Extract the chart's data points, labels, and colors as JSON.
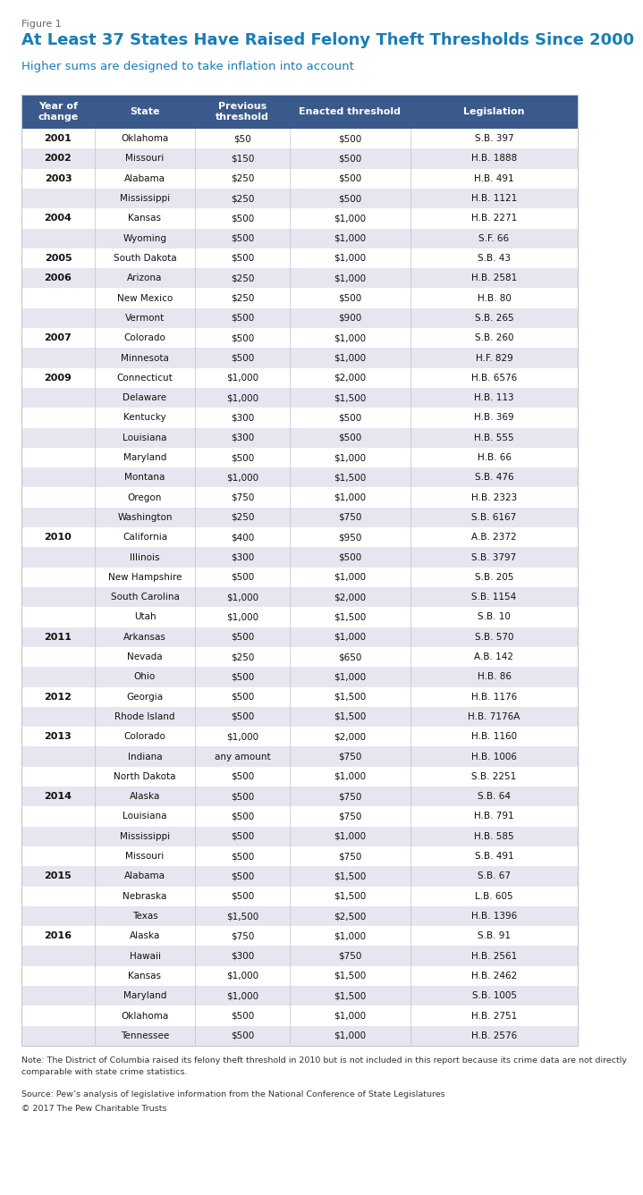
{
  "figure_label": "Figure 1",
  "title": "At Least 37 States Have Raised Felony Theft Thresholds Since 2000",
  "subtitle": "Higher sums are designed to take inflation into account",
  "header_bg": "#3a5a8c",
  "header_text_color": "#ffffff",
  "title_color": "#1a7db5",
  "subtitle_color": "#1a7db5",
  "figure_label_color": "#666666",
  "row_colors": [
    "#ffffff",
    "#e6e6f0"
  ],
  "headers": [
    "Year of\nchange",
    "State",
    "Previous\nthreshold",
    "Enacted threshold",
    "Legislation"
  ],
  "note": "Note: The District of Columbia raised its felony theft threshold in 2010 but is not included in this report because its crime data are not directly\ncomparable with state crime statistics.",
  "source": "Source: Pew’s analysis of legislative information from the National Conference of State Legislatures",
  "copyright": "© 2017 The Pew Charitable Trusts",
  "rows": [
    [
      "2001",
      "Oklahoma",
      "$50",
      "$500",
      "S.B. 397"
    ],
    [
      "2002",
      "Missouri",
      "$150",
      "$500",
      "H.B. 1888"
    ],
    [
      "2003",
      "Alabama",
      "$250",
      "$500",
      "H.B. 491"
    ],
    [
      "",
      "Mississippi",
      "$250",
      "$500",
      "H.B. 1121"
    ],
    [
      "2004",
      "Kansas",
      "$500",
      "$1,000",
      "H.B. 2271"
    ],
    [
      "",
      "Wyoming",
      "$500",
      "$1,000",
      "S.F. 66"
    ],
    [
      "2005",
      "South Dakota",
      "$500",
      "$1,000",
      "S.B. 43"
    ],
    [
      "2006",
      "Arizona",
      "$250",
      "$1,000",
      "H.B. 2581"
    ],
    [
      "",
      "New Mexico",
      "$250",
      "$500",
      "H.B. 80"
    ],
    [
      "",
      "Vermont",
      "$500",
      "$900",
      "S.B. 265"
    ],
    [
      "2007",
      "Colorado",
      "$500",
      "$1,000",
      "S.B. 260"
    ],
    [
      "",
      "Minnesota",
      "$500",
      "$1,000",
      "H.F. 829"
    ],
    [
      "2009",
      "Connecticut",
      "$1,000",
      "$2,000",
      "H.B. 6576"
    ],
    [
      "",
      "Delaware",
      "$1,000",
      "$1,500",
      "H.B. 113"
    ],
    [
      "",
      "Kentucky",
      "$300",
      "$500",
      "H.B. 369"
    ],
    [
      "",
      "Louisiana",
      "$300",
      "$500",
      "H.B. 555"
    ],
    [
      "",
      "Maryland",
      "$500",
      "$1,000",
      "H.B. 66"
    ],
    [
      "",
      "Montana",
      "$1,000",
      "$1,500",
      "S.B. 476"
    ],
    [
      "",
      "Oregon",
      "$750",
      "$1,000",
      "H.B. 2323"
    ],
    [
      "",
      "Washington",
      "$250",
      "$750",
      "S.B. 6167"
    ],
    [
      "2010",
      "California",
      "$400",
      "$950",
      "A.B. 2372"
    ],
    [
      "",
      "Illinois",
      "$300",
      "$500",
      "S.B. 3797"
    ],
    [
      "",
      "New Hampshire",
      "$500",
      "$1,000",
      "S.B. 205"
    ],
    [
      "",
      "South Carolina",
      "$1,000",
      "$2,000",
      "S.B. 1154"
    ],
    [
      "",
      "Utah",
      "$1,000",
      "$1,500",
      "S.B. 10"
    ],
    [
      "2011",
      "Arkansas",
      "$500",
      "$1,000",
      "S.B. 570"
    ],
    [
      "",
      "Nevada",
      "$250",
      "$650",
      "A.B. 142"
    ],
    [
      "",
      "Ohio",
      "$500",
      "$1,000",
      "H.B. 86"
    ],
    [
      "2012",
      "Georgia",
      "$500",
      "$1,500",
      "H.B. 1176"
    ],
    [
      "",
      "Rhode Island",
      "$500",
      "$1,500",
      "H.B. 7176A"
    ],
    [
      "2013",
      "Colorado",
      "$1,000",
      "$2,000",
      "H.B. 1160"
    ],
    [
      "",
      "Indiana",
      "any amount",
      "$750",
      "H.B. 1006"
    ],
    [
      "",
      "North Dakota",
      "$500",
      "$1,000",
      "S.B. 2251"
    ],
    [
      "2014",
      "Alaska",
      "$500",
      "$750",
      "S.B. 64"
    ],
    [
      "",
      "Louisiana",
      "$500",
      "$750",
      "H.B. 791"
    ],
    [
      "",
      "Mississippi",
      "$500",
      "$1,000",
      "H.B. 585"
    ],
    [
      "",
      "Missouri",
      "$500",
      "$750",
      "S.B. 491"
    ],
    [
      "2015",
      "Alabama",
      "$500",
      "$1,500",
      "S.B. 67"
    ],
    [
      "",
      "Nebraska",
      "$500",
      "$1,500",
      "L.B. 605"
    ],
    [
      "",
      "Texas",
      "$1,500",
      "$2,500",
      "H.B. 1396"
    ],
    [
      "2016",
      "Alaska",
      "$750",
      "$1,000",
      "S.B. 91"
    ],
    [
      "",
      "Hawaii",
      "$300",
      "$750",
      "H.B. 2561"
    ],
    [
      "",
      "Kansas",
      "$1,000",
      "$1,500",
      "H.B. 2462"
    ],
    [
      "",
      "Maryland",
      "$1,000",
      "$1,500",
      "S.B. 1005"
    ],
    [
      "",
      "Oklahoma",
      "$500",
      "$1,000",
      "H.B. 2751"
    ],
    [
      "",
      "Tennessee",
      "$500",
      "$1,000",
      "H.B. 2576"
    ]
  ]
}
